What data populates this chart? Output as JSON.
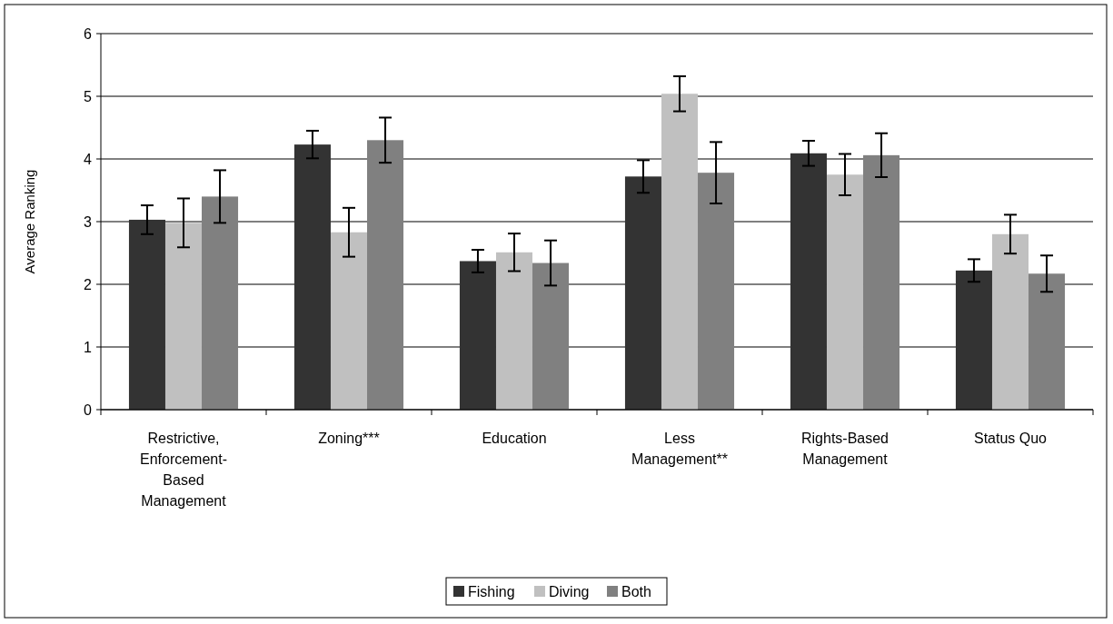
{
  "chart_data": {
    "type": "bar",
    "ylabel": "Average Ranking",
    "categories": [
      "Restrictive, Enforcement-Based Management",
      "Zoning***",
      "Education",
      "Less Management**",
      "Rights-Based Management",
      "Status Quo"
    ],
    "series": [
      {
        "name": "Fishing",
        "color": "#333333",
        "values": [
          3.03,
          4.23,
          2.37,
          3.72,
          4.09,
          2.22
        ],
        "errors": [
          0.23,
          0.22,
          0.18,
          0.26,
          0.2,
          0.18
        ]
      },
      {
        "name": "Diving",
        "color": "#c0c0c0",
        "values": [
          2.98,
          2.83,
          2.51,
          5.04,
          3.75,
          2.8
        ],
        "errors": [
          0.39,
          0.39,
          0.3,
          0.28,
          0.33,
          0.31
        ]
      },
      {
        "name": "Both",
        "color": "#808080",
        "values": [
          3.4,
          4.3,
          2.34,
          3.78,
          4.06,
          2.17
        ],
        "errors": [
          0.42,
          0.36,
          0.36,
          0.49,
          0.35,
          0.29
        ]
      }
    ],
    "ylim": [
      0,
      6
    ],
    "yticks": [
      0,
      1,
      2,
      3,
      4,
      5,
      6
    ],
    "grid": "y",
    "legend": "bottom"
  }
}
